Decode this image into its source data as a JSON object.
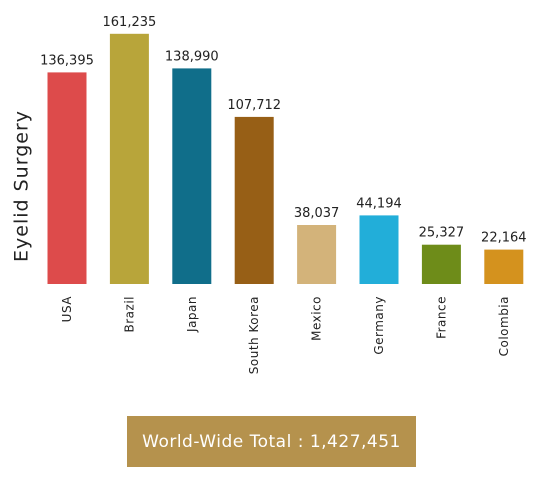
{
  "chart_data": {
    "type": "bar",
    "ylabel": "Eyelid Surgery",
    "categories": [
      "USA",
      "Brazil",
      "Japan",
      "South Korea",
      "Mexico",
      "Germany",
      "France",
      "Colombia"
    ],
    "values": [
      136395,
      161235,
      138990,
      107712,
      38037,
      44194,
      25327,
      22164
    ],
    "value_labels": [
      "136,395",
      "161,235",
      "138,990",
      "107,712",
      "38,037",
      "44,194",
      "25,327",
      "22,164"
    ],
    "colors": [
      "#dd4b4b",
      "#b8a53a",
      "#106e8a",
      "#975f16",
      "#d3b37a",
      "#22aed9",
      "#6e8c19",
      "#d4921e"
    ],
    "ylim": [
      0,
      165000
    ],
    "grid": false
  },
  "total": {
    "label": "World-Wide Total : 1,427,451",
    "color": "#b5924d"
  }
}
